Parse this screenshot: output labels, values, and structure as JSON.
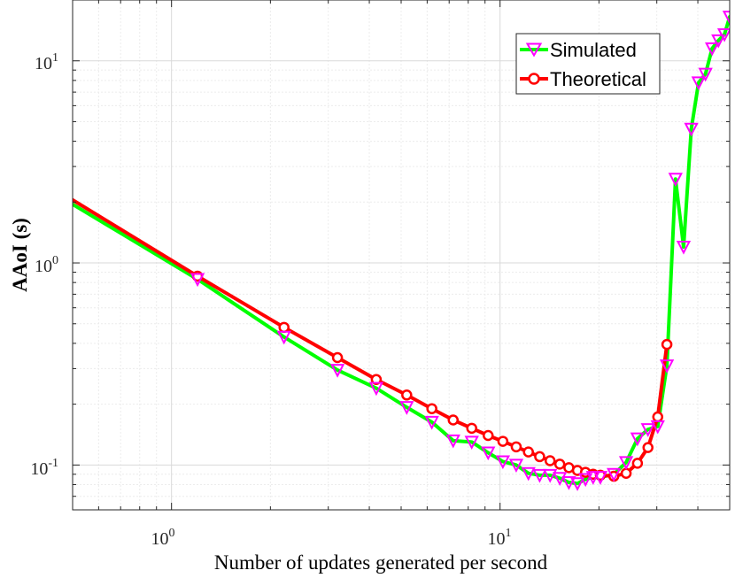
{
  "chart_data": {
    "type": "line",
    "title": "",
    "xlabel": "Number of updates generated per second",
    "ylabel": "AAoI (s)",
    "xscale": "log",
    "yscale": "log",
    "xlim": [
      0.5,
      50
    ],
    "ylim": [
      0.06,
      20
    ],
    "x_ticks": [
      {
        "value": 1,
        "base": "10",
        "exp": "0"
      },
      {
        "value": 10,
        "base": "10",
        "exp": "1"
      }
    ],
    "y_ticks": [
      {
        "value": 0.1,
        "base": "10",
        "exp": "-1"
      },
      {
        "value": 1,
        "base": "10",
        "exp": "0"
      },
      {
        "value": 10,
        "base": "10",
        "exp": "1"
      }
    ],
    "grid": true,
    "legend_position": "top-right",
    "series": [
      {
        "name": "Simulated",
        "color": "#00ff00",
        "marker": "triangle-down",
        "marker_color": "#ff00ff",
        "marker_start_index": 1,
        "x": [
          0.5,
          1.2,
          2.2,
          3.2,
          4.2,
          5.2,
          6.2,
          7.2,
          8.2,
          9.2,
          10.2,
          11.2,
          12.2,
          13.2,
          14.2,
          15.2,
          16.2,
          17.2,
          18.2,
          19.2,
          20.2,
          22.2,
          24.2,
          26.2,
          28.2,
          30.2,
          32.2,
          34.2,
          36.2,
          38.2,
          40.2,
          42.2,
          44.2,
          46.2,
          48.2,
          50.0
        ],
        "y": [
          1.95,
          0.83,
          0.43,
          0.295,
          0.24,
          0.193,
          0.163,
          0.132,
          0.13,
          0.115,
          0.104,
          0.1,
          0.091,
          0.089,
          0.089,
          0.086,
          0.082,
          0.081,
          0.085,
          0.087,
          0.087,
          0.09,
          0.103,
          0.135,
          0.15,
          0.155,
          0.31,
          2.6,
          1.2,
          4.6,
          7.8,
          8.6,
          11.5,
          12.6,
          13.5,
          16.5
        ]
      },
      {
        "name": "Theoretical",
        "color": "#ff0000",
        "marker": "circle",
        "marker_color": "#ff0000",
        "marker_start_index": 1,
        "x": [
          0.5,
          1.2,
          2.2,
          3.2,
          4.2,
          5.2,
          6.2,
          7.2,
          8.2,
          9.2,
          10.2,
          11.2,
          12.2,
          13.2,
          14.2,
          15.2,
          16.2,
          17.2,
          18.2,
          19.2,
          20.2,
          22.2,
          24.2,
          26.2,
          28.2,
          30.2,
          32.2
        ],
        "y": [
          2.05,
          0.86,
          0.48,
          0.34,
          0.265,
          0.222,
          0.19,
          0.167,
          0.152,
          0.14,
          0.131,
          0.123,
          0.116,
          0.11,
          0.105,
          0.101,
          0.097,
          0.094,
          0.092,
          0.09,
          0.089,
          0.088,
          0.091,
          0.102,
          0.122,
          0.173,
          0.395
        ]
      }
    ]
  }
}
